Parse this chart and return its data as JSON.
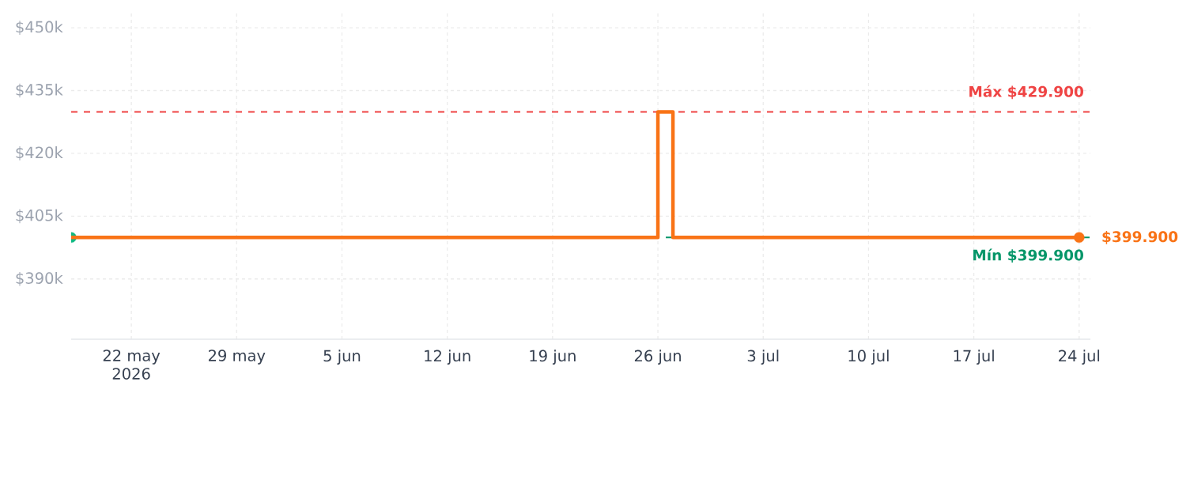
{
  "chart_data": {
    "type": "step",
    "xlim": [
      "2026-05-18",
      "2026-07-24T18:00"
    ],
    "xticks": [
      {
        "value": "2026-05-22",
        "label": "22 may\n2026"
      },
      {
        "value": "2026-05-29",
        "label": "29 may"
      },
      {
        "value": "2026-06-05",
        "label": "5 jun"
      },
      {
        "value": "2026-06-12",
        "label": "12 jun"
      },
      {
        "value": "2026-06-19",
        "label": "19 jun"
      },
      {
        "value": "2026-06-26",
        "label": "26 jun"
      },
      {
        "value": "2026-07-03",
        "label": "3 jul"
      },
      {
        "value": "2026-07-10",
        "label": "10 jul"
      },
      {
        "value": "2026-07-17",
        "label": "17 jul"
      },
      {
        "value": "2026-07-24",
        "label": "24 jul"
      }
    ],
    "ylim": [
      375600,
      453800
    ],
    "yticks": [
      {
        "value": 390000,
        "label": "$390k"
      },
      {
        "value": 405000,
        "label": "$405k"
      },
      {
        "value": 420000,
        "label": "$420k"
      },
      {
        "value": 435000,
        "label": "$435k"
      },
      {
        "value": 450000,
        "label": "$450k"
      }
    ],
    "grid": true,
    "series": [
      {
        "type": "scatter",
        "color": "#10b981",
        "marker": "circle",
        "x": [
          "2026-05-18"
        ],
        "values": [
          399900
        ]
      },
      {
        "color": "#f97316",
        "x": [
          "2026-05-18",
          "2026-06-26",
          "2026-06-27",
          "2026-07-24"
        ],
        "values": [
          399900,
          429900,
          399900,
          399900
        ]
      },
      {
        "type": "scatter",
        "color": "#f97316",
        "marker": "circle",
        "x": [
          "2026-07-24"
        ],
        "values": [
          399900
        ],
        "value_labels": [
          "$399.900"
        ]
      }
    ],
    "ref_lines": [
      {
        "axis": "y",
        "value": 429900,
        "label": "Máx $429.900",
        "color": "#ef4444",
        "line_style": "dashed"
      },
      {
        "axis": "y",
        "value": 399900,
        "label": "Mín $399.900",
        "color": "#059669",
        "line_style": "dashed"
      }
    ]
  }
}
